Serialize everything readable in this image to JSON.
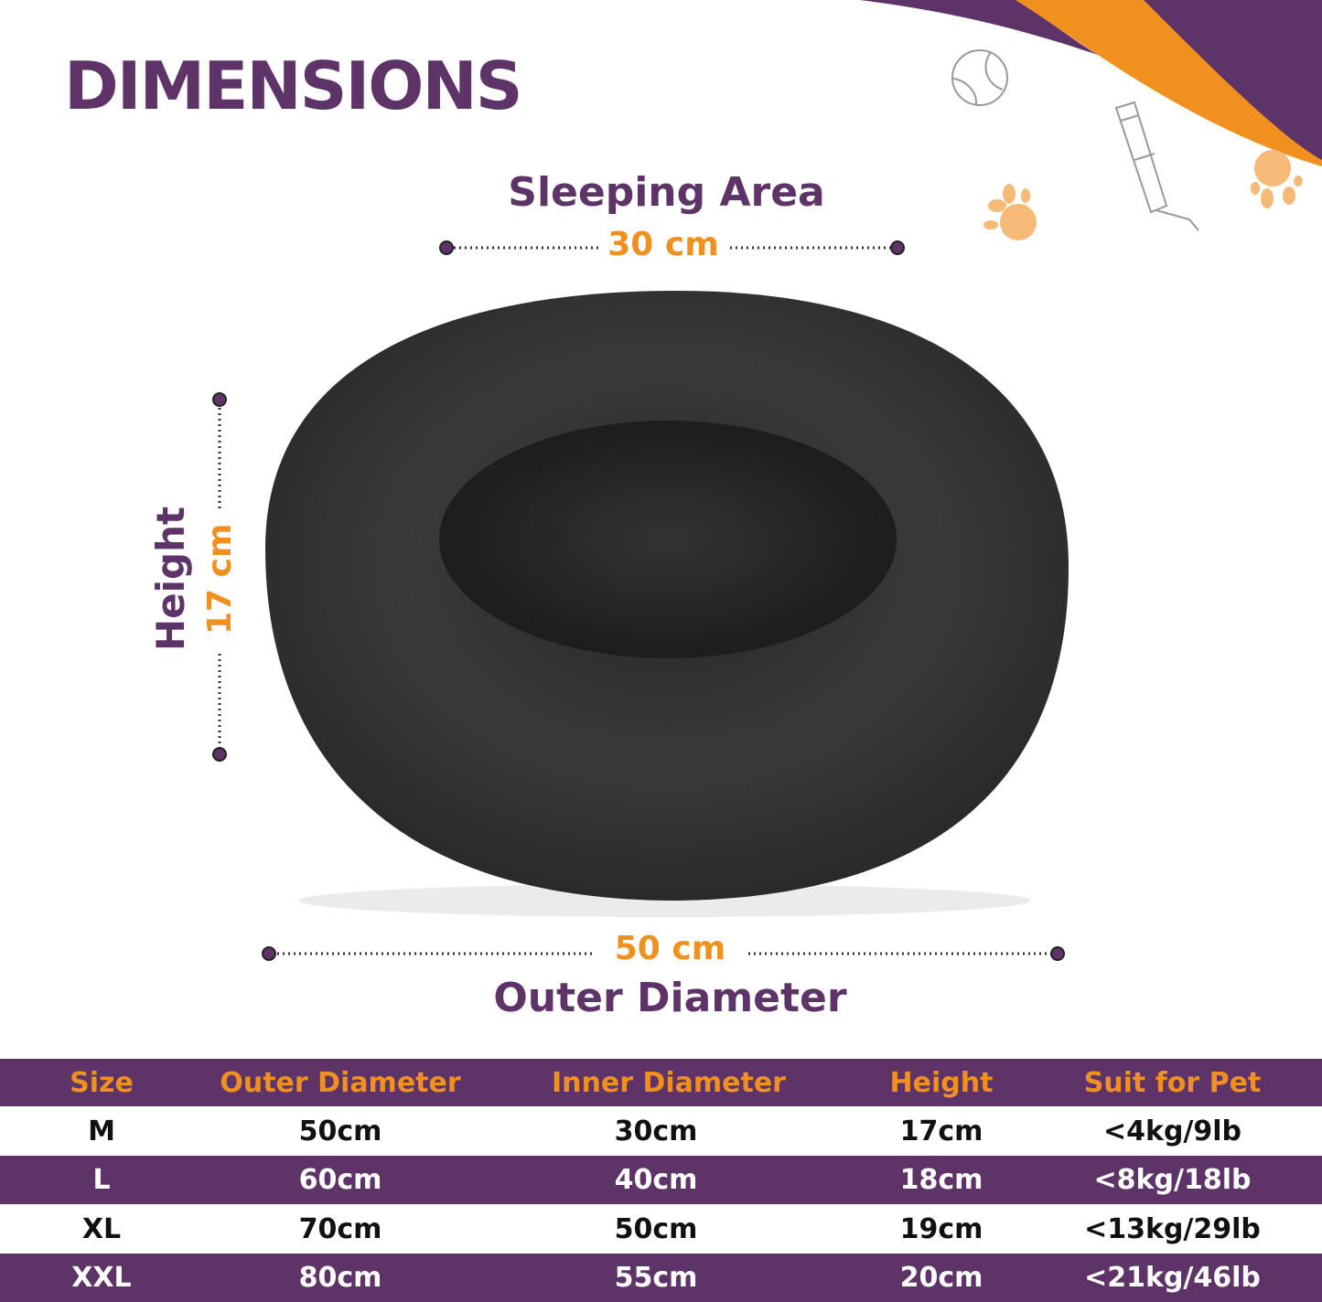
{
  "title": "DIMENSIONS",
  "sleeping_area": {
    "label": "Sleeping Area",
    "value": "30 cm"
  },
  "height": {
    "label": "Height",
    "value": "17 cm"
  },
  "outer_diameter": {
    "label": "Outer Diameter",
    "value": "50 cm"
  },
  "colors": {
    "purple": "#5e3468",
    "orange": "#f0901f"
  },
  "decor_icons": [
    "tennis-ball-icon",
    "water-bottle-icon",
    "paw-print-icon",
    "paw-print-icon"
  ],
  "table": {
    "headers": [
      "Size",
      "Outer Diameter",
      "Inner Diameter",
      "Height",
      "Suit for Pet"
    ],
    "rows": [
      [
        "M",
        "50cm",
        "30cm",
        "17cm",
        "<4kg/9lb"
      ],
      [
        "L",
        "60cm",
        "40cm",
        "18cm",
        "<8kg/18lb"
      ],
      [
        "XL",
        "70cm",
        "50cm",
        "19cm",
        "<13kg/29lb"
      ],
      [
        "XXL",
        "80cm",
        "55cm",
        "20cm",
        "<21kg/46lb"
      ]
    ]
  }
}
